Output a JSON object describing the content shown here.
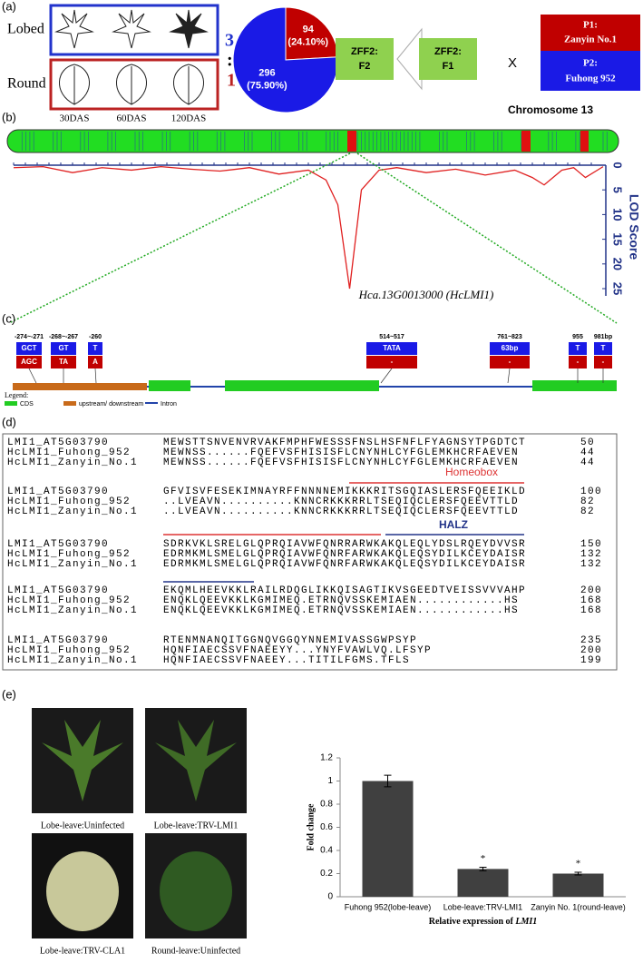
{
  "panel_a": {
    "label": "(a)",
    "phenotypes": [
      {
        "name": "Lobed",
        "count": "3"
      },
      {
        "name": "Round",
        "count": "1"
      }
    ],
    "separator": ":",
    "stages": [
      "30DAS",
      "60DAS",
      "120DAS"
    ],
    "pie": {
      "type": "pie",
      "values": [
        94,
        296
      ],
      "value_labels": [
        [
          "94",
          "(24.10%)"
        ],
        [
          "296",
          "(75.90%)"
        ]
      ],
      "colors": [
        "#c00000",
        "#1a1ae6"
      ]
    },
    "f2": [
      "ZFF2:",
      "F2"
    ],
    "f1": [
      "ZFF2:",
      "F1"
    ],
    "cross": "X",
    "p1": [
      "P1:",
      "Zanyin No.1"
    ],
    "p2": [
      "P2:",
      "Fuhong 952"
    ]
  },
  "panel_b": {
    "label": "(b)",
    "title": "Chromosome 13",
    "gene": "Hca.13G0013000 (HcLMI1)",
    "lod": {
      "type": "line",
      "axis_label": "LOD Score",
      "color": "#e02020",
      "x": [
        0,
        5,
        10,
        15,
        20,
        25,
        30,
        35,
        40,
        45,
        50,
        53,
        55,
        57,
        59,
        62,
        65,
        70,
        75,
        80,
        85,
        88,
        90,
        93,
        95,
        97,
        100
      ],
      "values": [
        0.5,
        0.3,
        1.5,
        0.5,
        1,
        0.3,
        0.8,
        1.2,
        0.5,
        1.8,
        1,
        3,
        8,
        25,
        5,
        1,
        0.5,
        1.5,
        0.8,
        2,
        1,
        2.5,
        4,
        1,
        0.5,
        2.5,
        0.3
      ],
      "xlim": [
        0,
        100
      ],
      "ylim": [
        0,
        25
      ],
      "yticks": [
        0,
        5,
        10,
        15,
        20,
        25
      ],
      "y_inverted": true
    }
  },
  "panel_c": {
    "label": "(c)",
    "variants": [
      {
        "position": "-274~-271",
        "top": "GCT",
        "bottom": "AGC"
      },
      {
        "position": "-268~-267",
        "top": "GT",
        "bottom": "TA"
      },
      {
        "position": "-260",
        "top": "T",
        "bottom": "A"
      },
      {
        "position": "514~517",
        "top": "TATA",
        "bottom": "-"
      },
      {
        "position": "761~823",
        "top": "63bp",
        "bottom": "-"
      },
      {
        "position": "955",
        "top": "T",
        "bottom": "-"
      },
      {
        "position": "981bp",
        "top": "T",
        "bottom": "-"
      }
    ],
    "legend": {
      "title": "Legend:",
      "items": [
        "CDS",
        "upstream/ downstream",
        "Intron"
      ]
    }
  },
  "panel_d": {
    "label": "(d)",
    "blocks": [
      {
        "rows": [
          {
            "name": "LMI1_AT5G03790",
            "seq": "MEWSTTSNVENVRVAKFMPHFWESSSFNSLHSFNFLFYAGNSYTPGDTCT",
            "end": 50
          },
          {
            "name": "HcLMI1_Fuhong_952",
            "seq": "MEWNSS......FQEFVSFHISISFLCNYNHLCYFGLEMKHCRFAEVEN",
            "end": 44
          },
          {
            "name": "HcLMI1_Zanyin_No.1",
            "seq": "MEWNSS......FQEFVSFHISISFLCNYNHLCYFGLEMKHCRFAEVEN",
            "end": 44
          }
        ]
      },
      {
        "rows": [
          {
            "name": "LMI1_AT5G03790",
            "seq": "GFVISVFESEKIMNAYRFFNNNNEMIKKKRITSGQIASLERSFQEEIKLD",
            "end": 100
          },
          {
            "name": "HcLMI1_Fuhong_952",
            "seq": "..LVEAVN..........KNNCRKKKRRLTSEQIQCLERSFQEEVTTLD",
            "end": 82
          },
          {
            "name": "HcLMI1_Zanyin_No.1",
            "seq": "..LVEAVN..........KNNCRKKKRRLTSEQIQCLERSFQEEVTTLD",
            "end": 82
          }
        ]
      },
      {
        "rows": [
          {
            "name": "LMI1_AT5G03790",
            "seq": "SDRKVKLSRELGLQPRQIAVWFQNRRARWKAKQLEQLYDSLRQEYDVVSR",
            "end": 150
          },
          {
            "name": "HcLMI1_Fuhong_952",
            "seq": "EDRMKMLSMELGLQPRQIAVWFQNRFARWKAKQLEQSYDILKCEYDAISR",
            "end": 132
          },
          {
            "name": "HcLMI1_Zanyin_No.1",
            "seq": "EDRMKMLSMELGLQPRQIAVWFQNRFARWKAKQLEQSYDILKCEYDAISR",
            "end": 132
          }
        ]
      },
      {
        "rows": [
          {
            "name": "LMI1_AT5G03790",
            "seq": "EKQMLHEEVKKLRAILRDQGLIKKQISAGTIKVSGEEDTVEISSVVVAHP",
            "end": 200
          },
          {
            "name": "HcLMI1_Fuhong_952",
            "seq": "ENQKLQEEVKKLKGMIMEQ.ETRNQVSSKEMIAEN............HS",
            "end": 168
          },
          {
            "name": "HcLMI1_Zanyin_No.1",
            "seq": "ENQKLQEEVKKLKGMIMEQ.ETRNQVSSKEMIAEN............HS",
            "end": 168
          }
        ]
      },
      {
        "rows": [
          {
            "name": "LMI1_AT5G03790",
            "seq": "RTENMNANQITGGNQVGGQYNNEMIVASSGWPSYP",
            "end": 235
          },
          {
            "name": "HcLMI1_Fuhong_952",
            "seq": "HQNFIAECSSVFNAEEYY...YNYFVAWLVQ.LFSYP",
            "end": 200
          },
          {
            "name": "HcLMI1_Zanyin_No.1",
            "seq": "HQNFIAECSSVFNAEEY...TITILFGMS.TFLS",
            "end": 199
          }
        ]
      }
    ],
    "domains": [
      "Homeobox",
      "HALZ"
    ]
  },
  "panel_e": {
    "label": "(e)",
    "photos": [
      "Lobe-leave:Uninfected",
      "Lobe-leave:TRV-LMI1",
      "Lobe-leave:TRV-CLA1",
      "Round-leave:Uninfected"
    ],
    "chart": {
      "type": "bar",
      "categories": [
        "Fuhong 952(lobe-leave)",
        "Lobe-leave:TRV-LMI1",
        "Zanyin No. 1(round-leave)"
      ],
      "values": [
        1,
        0.24,
        0.2
      ],
      "errors": [
        0.05,
        0.015,
        0.012
      ],
      "significance": [
        null,
        "*",
        "*"
      ],
      "color": "#404040",
      "ylim": [
        0,
        1.2
      ],
      "yticks": [
        0,
        0.2,
        0.4,
        0.6,
        0.8,
        1,
        1.2
      ],
      "y_label": "Fold change",
      "x_label": [
        "Relative expression of ",
        "LMI1"
      ]
    }
  }
}
